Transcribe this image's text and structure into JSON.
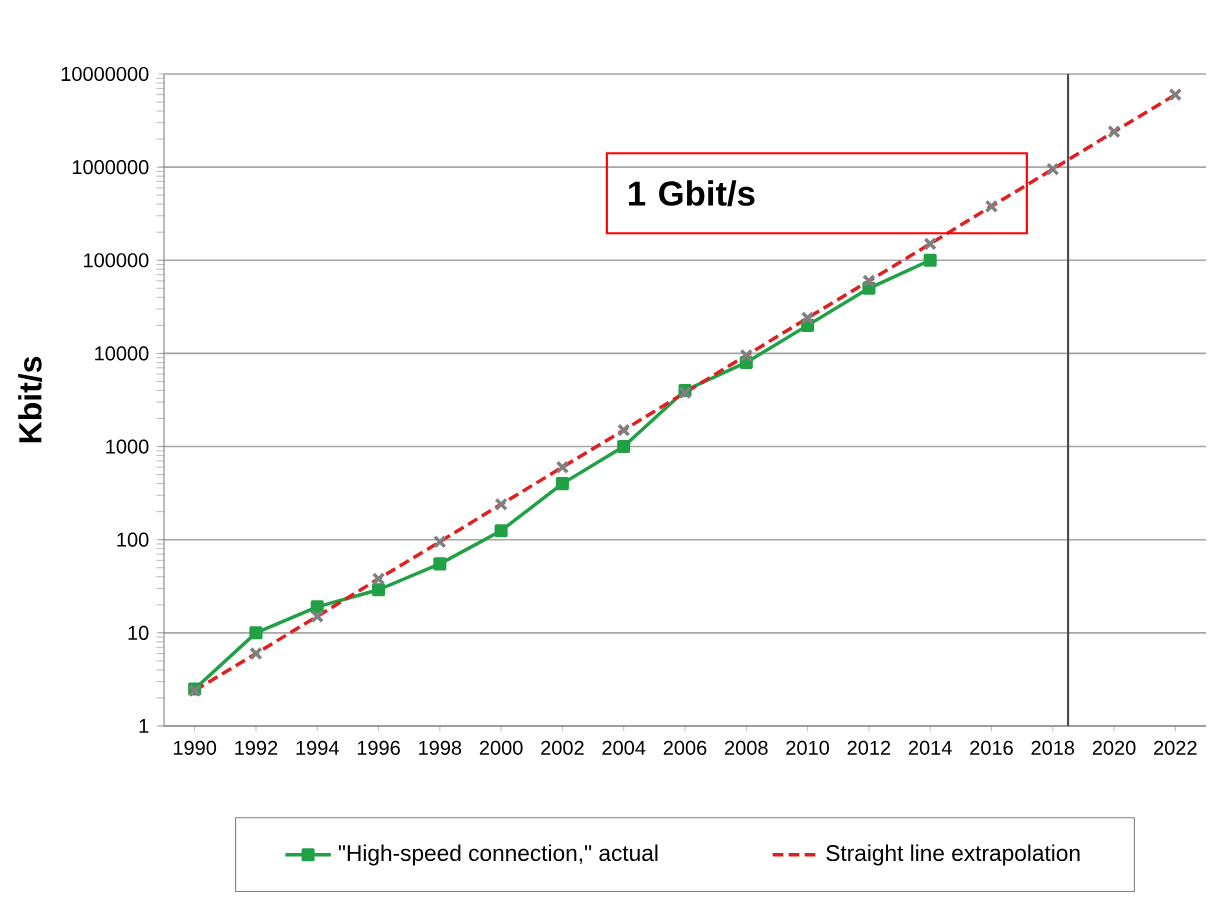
{
  "chart_data": {
    "type": "line",
    "ylabel": "Kbit/s",
    "log": "y",
    "grid": "y",
    "legend": "bottom",
    "line_style": "solid",
    "xlim": [
      1989,
      2023
    ],
    "xticks": [
      1990,
      1992,
      1994,
      1996,
      1998,
      2000,
      2002,
      2004,
      2006,
      2008,
      2010,
      2012,
      2014,
      2016,
      2018,
      2020,
      2022
    ],
    "ylim": [
      1,
      10000000
    ],
    "yticks": [
      1,
      10,
      100,
      1000,
      10000,
      100000,
      1000000,
      10000000
    ],
    "series": [
      {
        "name": "\"High-speed connection,\" actual",
        "color": "#22a046",
        "marker": "square",
        "x": [
          1990,
          1992,
          1994,
          1996,
          1998,
          2000,
          2002,
          2004,
          2006,
          2008,
          2010,
          2012,
          2014
        ],
        "values": [
          2.5,
          10,
          19,
          29,
          55,
          125,
          400,
          1000,
          4000,
          8000,
          20000,
          50000,
          100000
        ]
      },
      {
        "name": "Straight line extrapolation",
        "color": "#e02020",
        "marker": "cross",
        "line_style": "dashed",
        "x": [
          1990,
          1992,
          1994,
          1996,
          1998,
          2000,
          2002,
          2004,
          2006,
          2008,
          2010,
          2012,
          2014,
          2016,
          2018,
          2020,
          2022
        ],
        "values": [
          2.4,
          6,
          15,
          38,
          95,
          240,
          600,
          1500,
          3800,
          9500,
          24000,
          60000,
          150000,
          380000,
          950000,
          2400000,
          6000000
        ]
      }
    ],
    "ref_lines": [
      {
        "axis": "x",
        "value": 2018.5,
        "color": "#4c4c4c"
      }
    ],
    "annotations": [
      "1 Gbit/s"
    ]
  }
}
